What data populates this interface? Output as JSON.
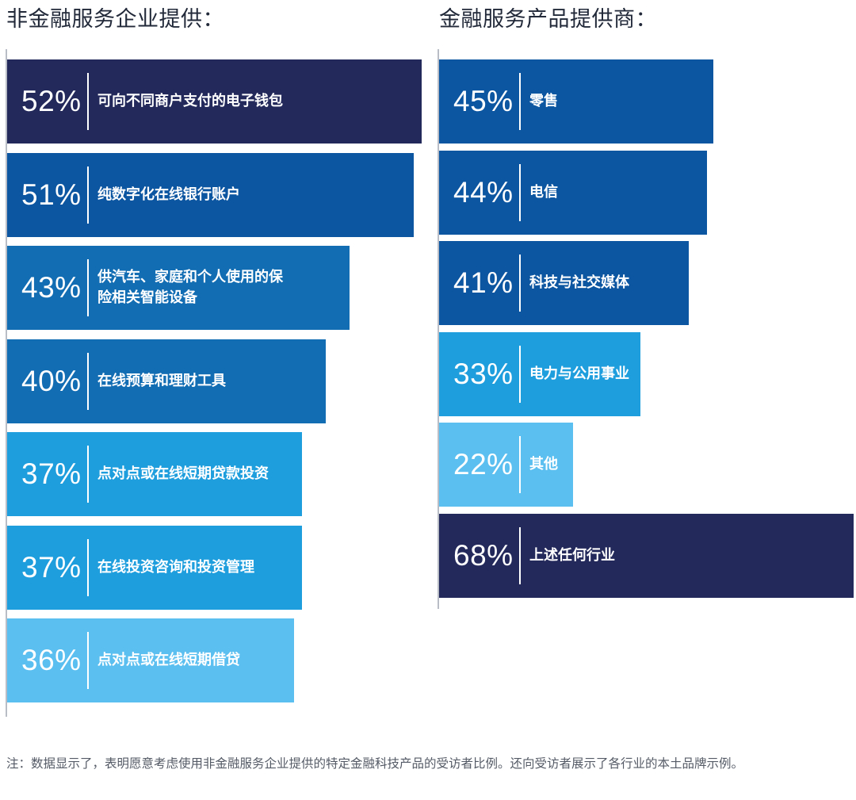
{
  "chart_data": [
    {
      "type": "bar",
      "orientation": "horizontal",
      "title": "非金融服务企业提供：",
      "xlim": [
        0,
        52
      ],
      "categories": [
        "可向不同商户支付的电子钱包",
        "纯数字化在线银行账户",
        "供汽车、家庭和个人使用的保险相关智能设备",
        "在线预算和理财工具",
        "点对点或在线短期贷款投资",
        "在线投资咨询和投资管理",
        "点对点或在线短期借贷"
      ],
      "label_lines": [
        [
          "可向不同商户支付的电子钱包"
        ],
        [
          "纯数字化在线银行账户"
        ],
        [
          "供汽车、家庭和个人使用的保",
          "险相关智能设备"
        ],
        [
          "在线预算和理财工具"
        ],
        [
          "点对点或在线短期贷款投资"
        ],
        [
          "在线投资咨询和投资管理"
        ],
        [
          "点对点或在线短期借贷"
        ]
      ],
      "values": [
        52,
        51,
        43,
        40,
        37,
        37,
        36
      ],
      "value_labels": [
        "52%",
        "51%",
        "43%",
        "40%",
        "37%",
        "37%",
        "36%"
      ],
      "colors": [
        "#23295b",
        "#0c55a0",
        "#126db3",
        "#126db3",
        "#1f9ede",
        "#1f9ede",
        "#5bbff0"
      ]
    },
    {
      "type": "bar",
      "orientation": "horizontal",
      "title": "金融服务产品提供商：",
      "xlim": [
        0,
        68
      ],
      "categories": [
        "零售",
        "电信",
        "科技与社交媒体",
        "电力与公用事业",
        "其他",
        "上述任何行业"
      ],
      "label_lines": [
        [
          "零售"
        ],
        [
          "电信"
        ],
        [
          "科技与社交媒体"
        ],
        [
          "电力与公用事业"
        ],
        [
          "其他"
        ],
        [
          "上述任何行业"
        ]
      ],
      "values": [
        45,
        44,
        41,
        33,
        22,
        68
      ],
      "value_labels": [
        "45%",
        "44%",
        "41%",
        "33%",
        "22%",
        "68%"
      ],
      "colors": [
        "#0c55a0",
        "#0c55a0",
        "#0c55a0",
        "#1f9ede",
        "#5bbff0",
        "#23295b"
      ]
    }
  ],
  "footnote": "注：数据显示了，表明愿意考虑使用非金融服务企业提供的特定金融科技产品的受访者比例。还向受访者展示了各行业的本土品牌示例。"
}
